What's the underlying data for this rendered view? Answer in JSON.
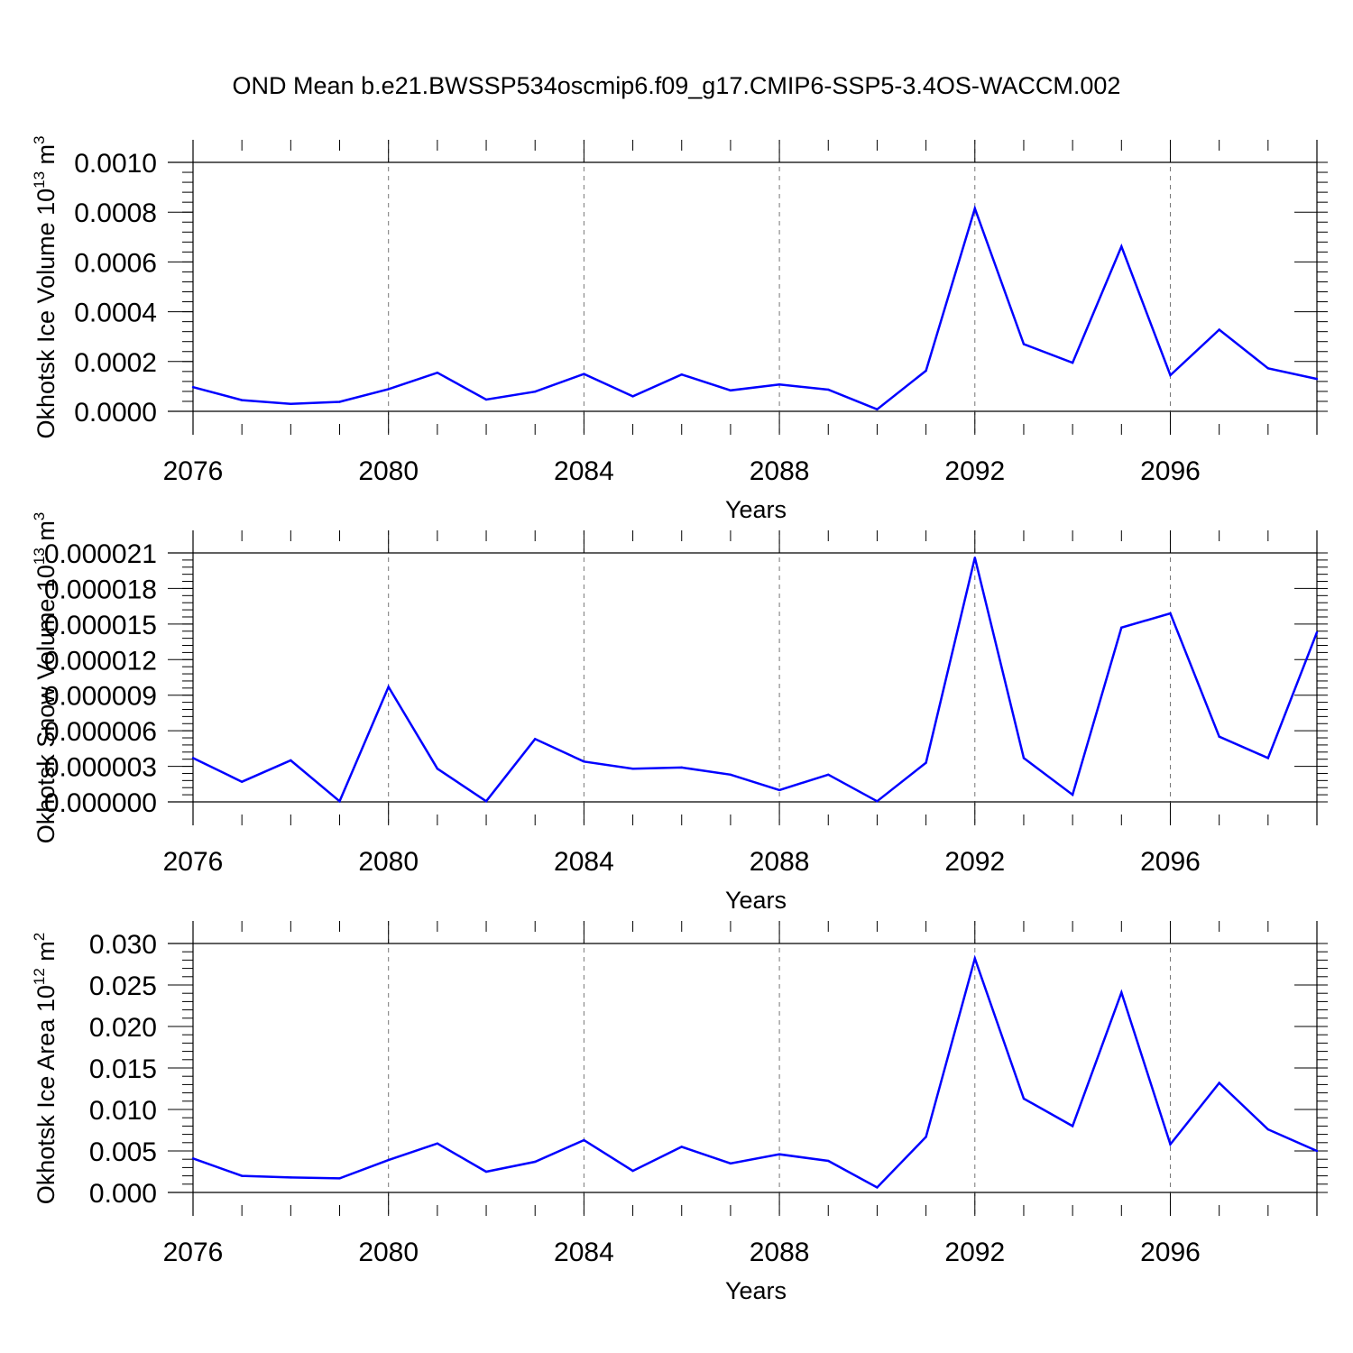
{
  "title": "OND Mean b.e21.BWSSP534oscmip6.f09_g17.CMIP6-SSP5-3.4OS-WACCM.002",
  "colors": {
    "series": "#0000ff",
    "grid": "#777777",
    "axis": "#000000"
  },
  "chart_data": [
    {
      "type": "line",
      "ylabel": "Okhotsk Ice Volume 10",
      "ylabel_exp": "13",
      "ylabel_unit": " m",
      "ylabel_unit_exp": "3",
      "xlabel": "Years",
      "xlim": [
        2076,
        2099
      ],
      "ylim": [
        0,
        0.001
      ],
      "x_major_ticks": [
        2076,
        2080,
        2084,
        2088,
        2092,
        2096
      ],
      "x_tick_labels": [
        "2076",
        "2080",
        "2084",
        "2088",
        "2092",
        "2096"
      ],
      "y_major_ticks": [
        0,
        0.0002,
        0.0004,
        0.0006,
        0.0008,
        0.001
      ],
      "y_tick_labels": [
        "0.0000",
        "0.0002",
        "0.0004",
        "0.0006",
        "0.0008",
        "0.0010"
      ],
      "y_minor_step": 4e-05,
      "gridlines": "vertical-dashed",
      "x": [
        2076,
        2077,
        2078,
        2079,
        2080,
        2081,
        2082,
        2083,
        2084,
        2085,
        2086,
        2087,
        2088,
        2089,
        2090,
        2091,
        2092,
        2093,
        2094,
        2095,
        2096,
        2097,
        2098,
        2099
      ],
      "series": [
        {
          "name": "Okhotsk Ice Volume",
          "values": [
            9.7e-05,
            4.5e-05,
            3e-05,
            3.8e-05,
            8.9e-05,
            0.000155,
            4.7e-05,
            7.9e-05,
            0.00015,
            6e-05,
            0.000148,
            8.4e-05,
            0.000108,
            8.7e-05,
            8e-06,
            0.000163,
            0.000815,
            0.00027,
            0.000195,
            0.000662,
            0.000145,
            0.000328,
            0.000173,
            0.00013
          ]
        }
      ]
    },
    {
      "type": "line",
      "ylabel": "Okhotsk Snow Volume 10",
      "ylabel_exp": "13",
      "ylabel_unit": " m",
      "ylabel_unit_exp": "3",
      "xlabel": "Years",
      "xlim": [
        2076,
        2099
      ],
      "ylim": [
        0,
        2.1e-05
      ],
      "x_major_ticks": [
        2076,
        2080,
        2084,
        2088,
        2092,
        2096
      ],
      "x_tick_labels": [
        "2076",
        "2080",
        "2084",
        "2088",
        "2092",
        "2096"
      ],
      "y_major_ticks": [
        0,
        3e-06,
        6e-06,
        9e-06,
        1.2e-05,
        1.5e-05,
        1.8e-05,
        2.1e-05
      ],
      "y_tick_labels": [
        "0.000000",
        "0.000003",
        "0.000006",
        "0.000009",
        "0.000012",
        "0.000015",
        "0.000018",
        "0.000021"
      ],
      "y_minor_step": 6e-07,
      "gridlines": "vertical-dashed",
      "x": [
        2076,
        2077,
        2078,
        2079,
        2080,
        2081,
        2082,
        2083,
        2084,
        2085,
        2086,
        2087,
        2088,
        2089,
        2090,
        2091,
        2092,
        2093,
        2094,
        2095,
        2096,
        2097,
        2098,
        2099
      ],
      "series": [
        {
          "name": "Okhotsk Snow Volume",
          "values": [
            3.7e-06,
            1.7e-06,
            3.5e-06,
            5e-08,
            9.7e-06,
            2.8e-06,
            5e-08,
            5.3e-06,
            3.4e-06,
            2.8e-06,
            2.9e-06,
            2.3e-06,
            1e-06,
            2.3e-06,
            5e-08,
            3.3e-06,
            2.06e-05,
            3.7e-06,
            6e-07,
            1.47e-05,
            1.59e-05,
            5.5e-06,
            3.7e-06,
            1.43e-05
          ]
        }
      ]
    },
    {
      "type": "line",
      "ylabel": "Okhotsk Ice Area 10",
      "ylabel_exp": "12",
      "ylabel_unit": " m",
      "ylabel_unit_exp": "2",
      "xlabel": "Years",
      "xlim": [
        2076,
        2099
      ],
      "ylim": [
        0,
        0.03
      ],
      "x_major_ticks": [
        2076,
        2080,
        2084,
        2088,
        2092,
        2096
      ],
      "x_tick_labels": [
        "2076",
        "2080",
        "2084",
        "2088",
        "2092",
        "2096"
      ],
      "y_major_ticks": [
        0,
        0.005,
        0.01,
        0.015,
        0.02,
        0.025,
        0.03
      ],
      "y_tick_labels": [
        "0.000",
        "0.005",
        "0.010",
        "0.015",
        "0.020",
        "0.025",
        "0.030"
      ],
      "y_minor_step": 0.001,
      "gridlines": "vertical-dashed",
      "x": [
        2076,
        2077,
        2078,
        2079,
        2080,
        2081,
        2082,
        2083,
        2084,
        2085,
        2086,
        2087,
        2088,
        2089,
        2090,
        2091,
        2092,
        2093,
        2094,
        2095,
        2096,
        2097,
        2098,
        2099
      ],
      "series": [
        {
          "name": "Okhotsk Ice Area",
          "values": [
            0.0041,
            0.002,
            0.0018,
            0.0017,
            0.0039,
            0.0059,
            0.0025,
            0.0037,
            0.0063,
            0.0026,
            0.0055,
            0.0035,
            0.0046,
            0.0038,
            0.0006,
            0.0067,
            0.0282,
            0.0113,
            0.008,
            0.0241,
            0.0058,
            0.0132,
            0.0076,
            0.005
          ]
        }
      ]
    }
  ]
}
